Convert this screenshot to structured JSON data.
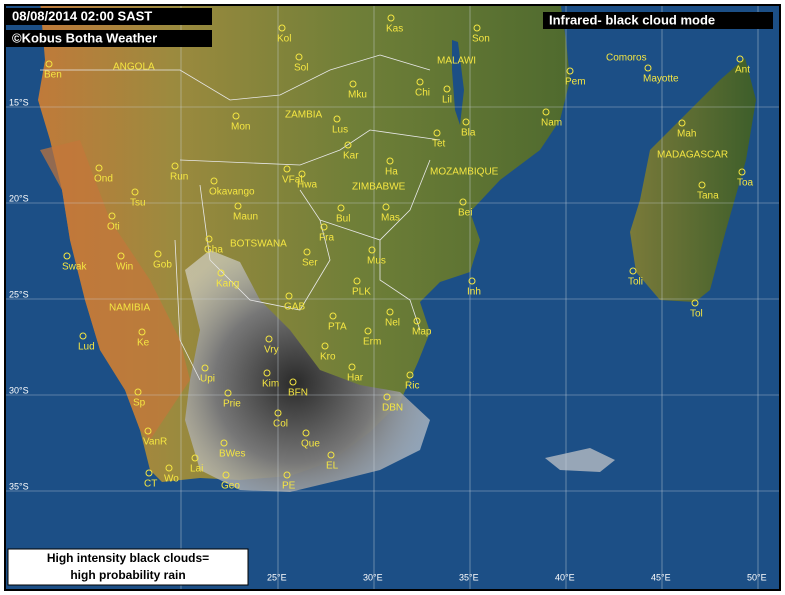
{
  "header": {
    "timestamp": "08/08/2014 02:00 SAST",
    "credit": "©Kobus Botha Weather",
    "mode": "Infrared- black cloud mode"
  },
  "legend": {
    "line1": "High intensity black clouds=",
    "line2": "high probability rain"
  },
  "latitude_labels": [
    "15°S",
    "20°S",
    "25°S",
    "30°S",
    "35°S"
  ],
  "longitude_labels": [
    "25°E",
    "30°E",
    "35°E",
    "40°E",
    "45°E",
    "50°E"
  ],
  "countries": [
    "ANGOLA",
    "ZAMBIA",
    "MALAWI",
    "MOZAMBIQUE",
    "ZIMBABWE",
    "BOTSWANA",
    "NAMIBIA",
    "MADAGASCAR",
    "Comoros"
  ],
  "places": [
    "Kol",
    "Kas",
    "Son",
    "Ben",
    "Sol",
    "Mku",
    "Chi",
    "Lil",
    "Pem",
    "Mayotte",
    "Ant",
    "Mon",
    "Lus",
    "Bla",
    "Nam",
    "Mah",
    "Kar",
    "Tet",
    "Ond",
    "Run",
    "VFal",
    "Hwa",
    "Ha",
    "Tana",
    "Toa",
    "Tsu",
    "Okavango",
    "Maun",
    "Bul",
    "Mas",
    "Bei",
    "Oti",
    "Fra",
    "Gha",
    "Swak",
    "Win",
    "Gob",
    "Ser",
    "Mus",
    "Kang",
    "Toli",
    "Tol",
    "GAB",
    "PLK",
    "Inh",
    "Lud",
    "Ke",
    "PTA",
    "Nel",
    "Map",
    "Vry",
    "Erm",
    "Kro",
    "Har",
    "Upi",
    "Kim",
    "BFN",
    "Ric",
    "Sp",
    "Prie",
    "DBN",
    "Col",
    "VanR",
    "Que",
    "BWes",
    "EL",
    "Lai",
    "Wo",
    "CT",
    "Geo",
    "PE"
  ]
}
